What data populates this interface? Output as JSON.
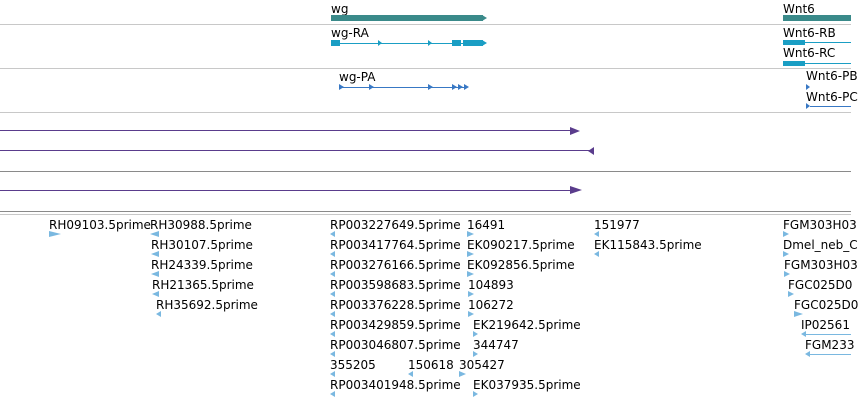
{
  "colors": {
    "gene": "#3a8a8a",
    "transcript": "#1a9ec4",
    "transcript_pa": "#3878c4",
    "est_line": "#5a3c8c",
    "feature": "#7ab8e0"
  },
  "gene_track": {
    "genes": [
      {
        "label": "wg"
      },
      {
        "label": "Wnt6"
      }
    ]
  },
  "transcript_track": {
    "transcripts": [
      {
        "label": "wg-RA"
      },
      {
        "label": "Wnt6-RB"
      },
      {
        "label": "Wnt6-RC"
      }
    ]
  },
  "protein_track": {
    "items": [
      {
        "label": "wg-PA"
      },
      {
        "label": "Wnt6-PB"
      },
      {
        "label": "Wnt6-PC"
      }
    ]
  },
  "est_track": {
    "labels": [
      "RH09103.5prime",
      "RH30988.5prime",
      "RH30107.5prime",
      "RH24339.5prime",
      "RH21365.5prime",
      "RH35692.5prime",
      "RP003227649.5prime",
      "RP003417764.5prime",
      "RP003276166.5prime",
      "RP003598683.5prime",
      "RP003376228.5prime",
      "RP003429859.5prime",
      "RP003046807.5prime",
      "355205",
      "150618",
      "305427",
      "RP003401948.5prime",
      "16491",
      "EK090217.5prime",
      "EK092856.5prime",
      "104893",
      "106272",
      "EK219642.5prime",
      "344747",
      "EK037935.5prime",
      "151977",
      "EK115843.5prime",
      "FGM303H03",
      "Dmel_neb_C",
      "FGM303H03",
      "FGC025D0",
      "FGC025D0",
      "IP02561",
      "FGM233"
    ]
  }
}
